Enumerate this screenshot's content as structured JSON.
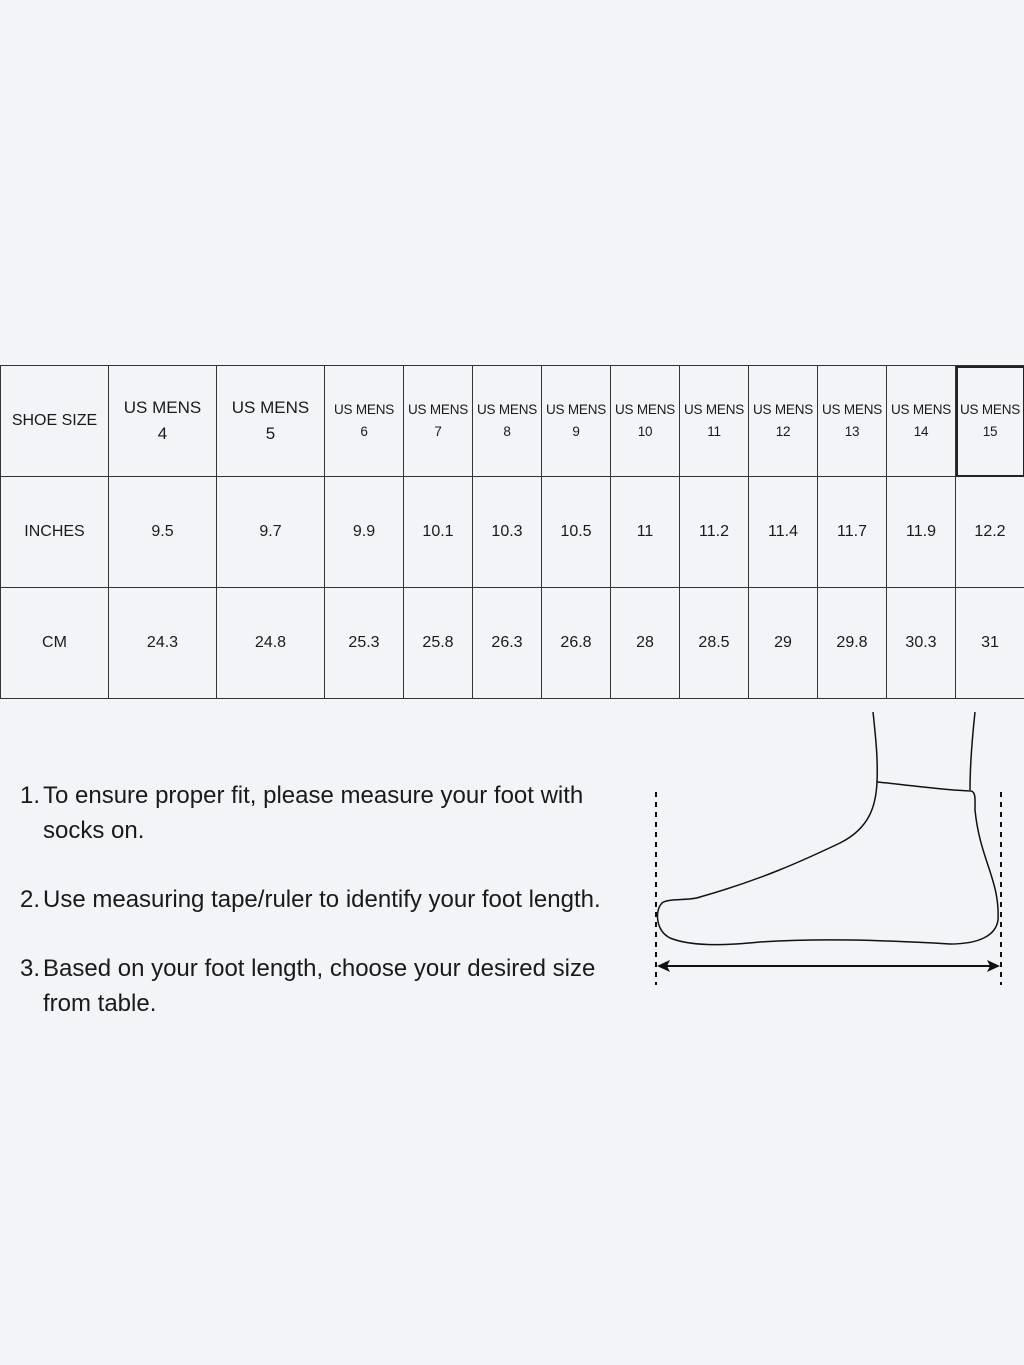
{
  "table": {
    "header_label": "SHOE SIZE",
    "sizes": [
      {
        "line1": "US MENS",
        "line2": "4"
      },
      {
        "line1": "US MENS",
        "line2": "5"
      },
      {
        "line1": "US MENS",
        "line2": "6"
      },
      {
        "line1": "US MENS",
        "line2": "7"
      },
      {
        "line1": "US MENS",
        "line2": "8"
      },
      {
        "line1": "US MENS",
        "line2": "9"
      },
      {
        "line1": "US MENS",
        "line2": "10"
      },
      {
        "line1": "US MENS",
        "line2": "11"
      },
      {
        "line1": "US MENS",
        "line2": "12"
      },
      {
        "line1": "US MENS",
        "line2": "13"
      },
      {
        "line1": "US MENS",
        "line2": "14"
      },
      {
        "line1": "US MENS",
        "line2": "15"
      }
    ],
    "rows": [
      {
        "label": "INCHES",
        "values": [
          "9.5",
          "9.7",
          "9.9",
          "10.1",
          "10.3",
          "10.5",
          "11",
          "11.2",
          "11.4",
          "11.7",
          "11.9",
          "12.2"
        ]
      },
      {
        "label": "CM",
        "values": [
          "24.3",
          "24.8",
          "25.3",
          "25.8",
          "26.3",
          "26.8",
          "28",
          "28.5",
          "29",
          "29.8",
          "30.3",
          "31"
        ]
      }
    ]
  },
  "steps": [
    {
      "num": "1.",
      "text": "To ensure proper fit, please measure your foot with socks on."
    },
    {
      "num": "2.",
      "text": "Use measuring tape/ruler to identify your foot length."
    },
    {
      "num": "3.",
      "text": "Based on your foot length, choose your desired size from table."
    }
  ],
  "illustration": {
    "icon": "foot-measurement-icon"
  }
}
